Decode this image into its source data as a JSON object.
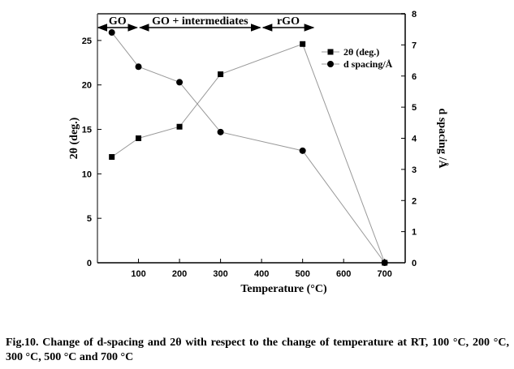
{
  "chart_data": {
    "type": "line",
    "title": "",
    "xlabel": "Temperature (°C)",
    "ylabel": "2θ (deg.)",
    "y2label": "d spacing /Å",
    "xlim": [
      0,
      750
    ],
    "ylim": [
      0,
      28
    ],
    "y2lim": [
      0,
      8
    ],
    "xticks": [
      100,
      200,
      300,
      400,
      500,
      600,
      700
    ],
    "yticks": [
      0,
      5,
      10,
      15,
      20,
      25
    ],
    "y2ticks": [
      0,
      1,
      2,
      3,
      4,
      5,
      6,
      7,
      8
    ],
    "x": [
      35,
      100,
      200,
      300,
      500,
      700
    ],
    "series": [
      {
        "name": "2θ (deg.)",
        "axis": "left",
        "marker": "square",
        "values": [
          11.9,
          14.0,
          15.3,
          21.2,
          24.6,
          0
        ]
      },
      {
        "name": "d spacing/Å",
        "axis": "right",
        "marker": "circle",
        "values": [
          7.4,
          6.3,
          5.8,
          4.2,
          3.6,
          0
        ]
      }
    ],
    "legend_position": "top-right",
    "grid": false,
    "annotations": [
      {
        "label": "GO",
        "x_range": [
          0,
          100
        ]
      },
      {
        "label": "GO + intermediates",
        "x_range": [
          100,
          400
        ]
      },
      {
        "label": "rGO",
        "x_range": [
          400,
          530
        ]
      }
    ]
  },
  "caption": {
    "text": "Fig.10. Change of d-spacing and 2θ with respect to the change of temperature at RT, 100 °C, 200 °C, 300 °C, 500 °C and 700 °C"
  }
}
